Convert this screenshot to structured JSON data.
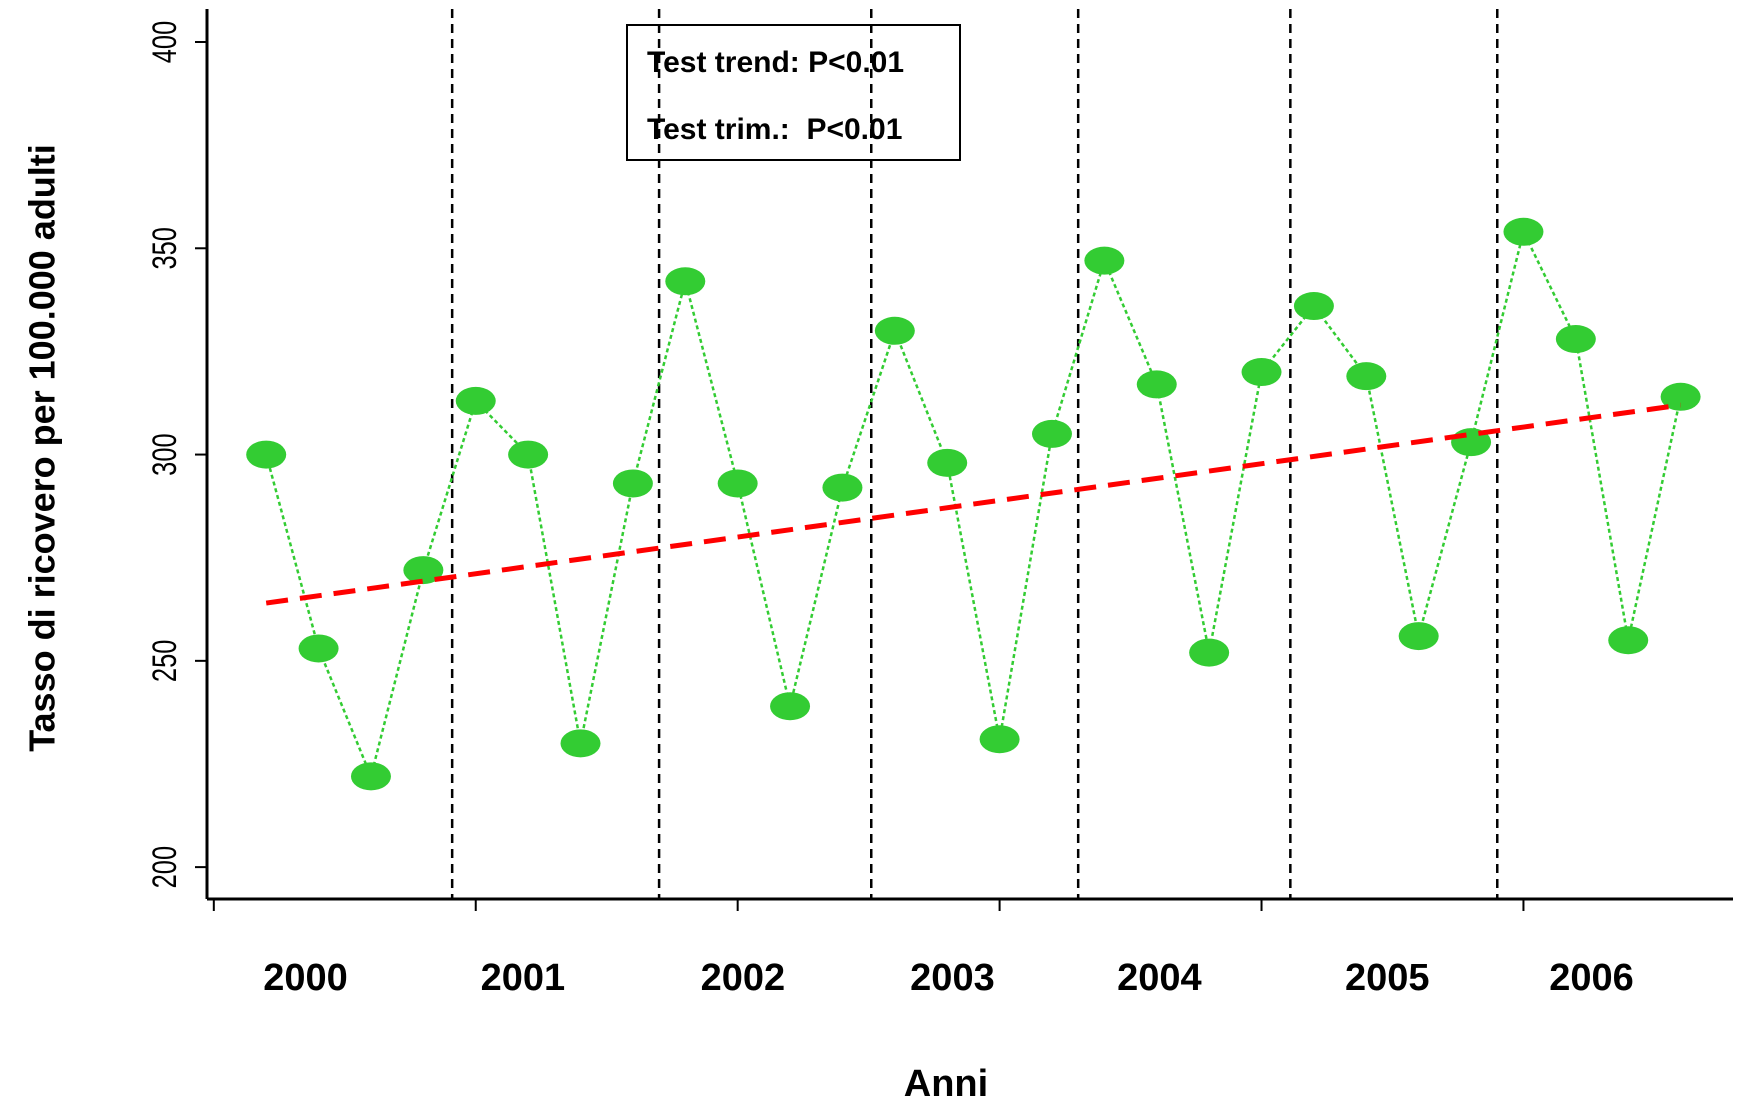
{
  "chart_data": {
    "type": "line",
    "xlabel": "Anni",
    "ylabel": "Tasso di ricovero per 100.000 adulti",
    "annotations": [
      "Test trend: P<0.01",
      "Test trim.:  P<0.01"
    ],
    "xlim": [
      -0.13,
      29.0
    ],
    "ylim": [
      193,
      408
    ],
    "xticks": [
      0,
      5,
      10,
      15,
      20,
      25
    ],
    "yticks": [
      200,
      250,
      300,
      350,
      400
    ],
    "year_labels": [
      {
        "value": 1.75,
        "label": "2000"
      },
      {
        "value": 5.9,
        "label": "2001"
      },
      {
        "value": 10.1,
        "label": "2002"
      },
      {
        "value": 14.1,
        "label": "2003"
      },
      {
        "value": 18.05,
        "label": "2004"
      },
      {
        "value": 22.4,
        "label": "2005"
      },
      {
        "value": 26.3,
        "label": "2006"
      }
    ],
    "vlines": [
      4.55,
      8.5,
      12.55,
      16.5,
      20.55,
      24.5
    ],
    "series": [
      {
        "color": "#33cc33",
        "x": [
          1,
          2,
          3,
          4,
          5,
          6,
          7,
          8,
          9,
          10,
          11,
          12,
          13,
          14,
          15,
          16,
          17,
          18,
          19,
          20,
          21,
          22,
          23,
          24,
          25,
          26,
          27,
          28
        ],
        "values": [
          300,
          253,
          222,
          272,
          313,
          300,
          230,
          293,
          342,
          293,
          239,
          292,
          330,
          298,
          231,
          305,
          347,
          317,
          252,
          320,
          336,
          319,
          256,
          303,
          354,
          328,
          255,
          314
        ]
      },
      {
        "color": "#ff0000",
        "x": [
          1,
          28
        ],
        "values": [
          264,
          312
        ]
      }
    ]
  }
}
